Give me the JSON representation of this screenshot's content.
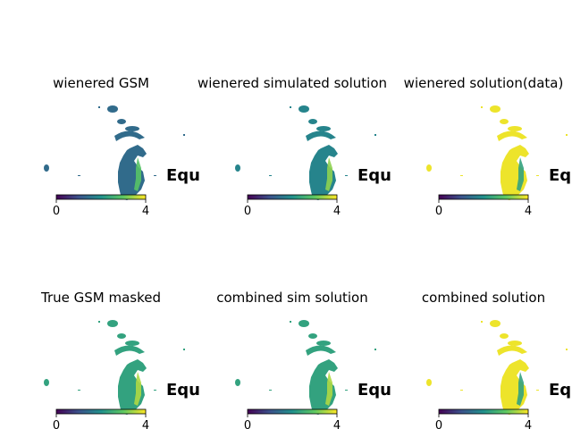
{
  "chart_data": [
    {
      "type": "heatmap",
      "title": "wienered GSM",
      "annotation": "Equ",
      "colorbar": {
        "ticks": [
          "0",
          "4"
        ],
        "range": [
          0,
          4
        ],
        "colormap": "viridis"
      },
      "dominant_value": 1.4,
      "core_value": 2.9
    },
    {
      "type": "heatmap",
      "title": "wienered simulated solution",
      "annotation": "Equ",
      "colorbar": {
        "ticks": [
          "0",
          "4"
        ],
        "range": [
          0,
          4
        ],
        "colormap": "viridis"
      },
      "dominant_value": 1.8,
      "core_value": 3.3
    },
    {
      "type": "heatmap",
      "title": "wienered solution(data)",
      "annotation": "Equ",
      "colorbar": {
        "ticks": [
          "0",
          "4"
        ],
        "range": [
          0,
          4
        ],
        "colormap": "viridis"
      },
      "dominant_value": 3.9,
      "core_value": 2.3
    },
    {
      "type": "heatmap",
      "title": "True GSM masked",
      "annotation": "Equ",
      "colorbar": {
        "ticks": [
          "0",
          "4"
        ],
        "range": [
          0,
          4
        ],
        "colormap": "viridis"
      },
      "dominant_value": 2.3,
      "core_value": 3.5
    },
    {
      "type": "heatmap",
      "title": "combined sim solution",
      "annotation": "Equ",
      "colorbar": {
        "ticks": [
          "0",
          "4"
        ],
        "range": [
          0,
          4
        ],
        "colormap": "viridis"
      },
      "dominant_value": 2.3,
      "core_value": 3.5
    },
    {
      "type": "heatmap",
      "title": "combined solution",
      "annotation": "Equ",
      "colorbar": {
        "ticks": [
          "0",
          "4"
        ],
        "range": [
          0,
          4
        ],
        "colormap": "viridis"
      },
      "dominant_value": 3.9,
      "core_value": 2.3
    }
  ]
}
